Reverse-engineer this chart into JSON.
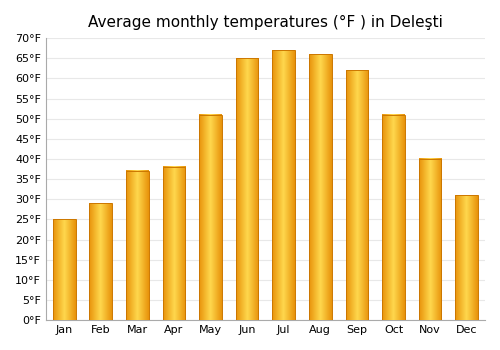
{
  "title": "Average monthly temperatures (°F ) in Deleşti",
  "months": [
    "Jan",
    "Feb",
    "Mar",
    "Apr",
    "May",
    "Jun",
    "Jul",
    "Aug",
    "Sep",
    "Oct",
    "Nov",
    "Dec"
  ],
  "values": [
    25,
    29,
    37,
    38,
    51,
    65,
    67,
    66,
    62,
    51,
    40,
    31
  ],
  "ylim": [
    0,
    70
  ],
  "yticks": [
    0,
    5,
    10,
    15,
    20,
    25,
    30,
    35,
    40,
    45,
    50,
    55,
    60,
    65,
    70
  ],
  "ytick_labels": [
    "0°F",
    "5°F",
    "10°F",
    "15°F",
    "20°F",
    "25°F",
    "30°F",
    "35°F",
    "40°F",
    "45°F",
    "50°F",
    "55°F",
    "60°F",
    "65°F",
    "70°F"
  ],
  "background_color": "#ffffff",
  "grid_color": "#e8e8e8",
  "bar_edge_color": "#E8920A",
  "bar_center_color": "#FFD84D",
  "title_fontsize": 11,
  "tick_fontsize": 8,
  "figsize": [
    5.0,
    3.5
  ],
  "dpi": 100
}
